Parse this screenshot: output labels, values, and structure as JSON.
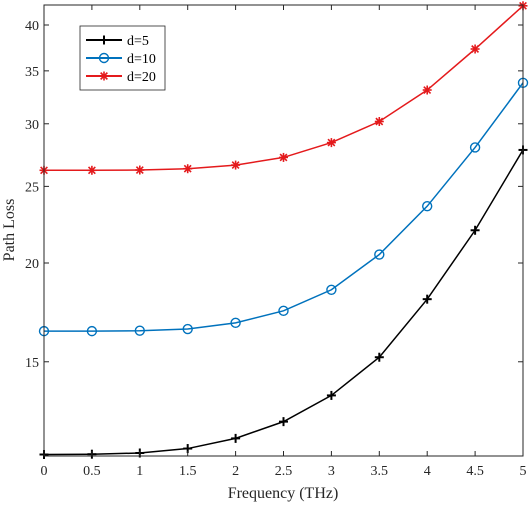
{
  "chart_data": {
    "type": "line",
    "xlabel": "Frequency (THz)",
    "ylabel": "Path Loss",
    "xlim": [
      0,
      5
    ],
    "ylim": [
      11.4,
      42.4
    ],
    "y_scale": "log",
    "xticks": [
      0,
      0.5,
      1,
      1.5,
      2,
      2.5,
      3,
      3.5,
      4,
      4.5,
      5
    ],
    "xtick_labels": [
      "0",
      "0.5",
      "1",
      "1.5",
      "2",
      "2.5",
      "3",
      "3.5",
      "4",
      "4.5",
      "5"
    ],
    "yticks": [
      15,
      20,
      25,
      30,
      35,
      40
    ],
    "ytick_labels": [
      "15",
      "20",
      "25",
      "30",
      "35",
      "40"
    ],
    "grid": false,
    "legend_position": "top-left",
    "x": [
      0,
      0.5,
      1,
      1.5,
      2,
      2.5,
      3,
      3.5,
      4,
      4.5,
      5
    ],
    "series": [
      {
        "name": "d=5",
        "color": "#000000",
        "marker": "plus",
        "values": [
          11.45,
          11.46,
          11.5,
          11.65,
          12.0,
          12.6,
          13.6,
          15.2,
          18.0,
          22.0,
          27.8
        ]
      },
      {
        "name": "d=10",
        "color": "#0072BD",
        "marker": "circle",
        "values": [
          16.4,
          16.4,
          16.42,
          16.5,
          16.8,
          17.4,
          18.5,
          20.5,
          23.6,
          28.0,
          33.8
        ]
      },
      {
        "name": "d=20",
        "color": "#E41A1C",
        "marker": "asterisk",
        "values": [
          26.2,
          26.2,
          26.22,
          26.32,
          26.6,
          27.2,
          28.4,
          30.2,
          33.1,
          37.3,
          42.3
        ]
      }
    ]
  }
}
